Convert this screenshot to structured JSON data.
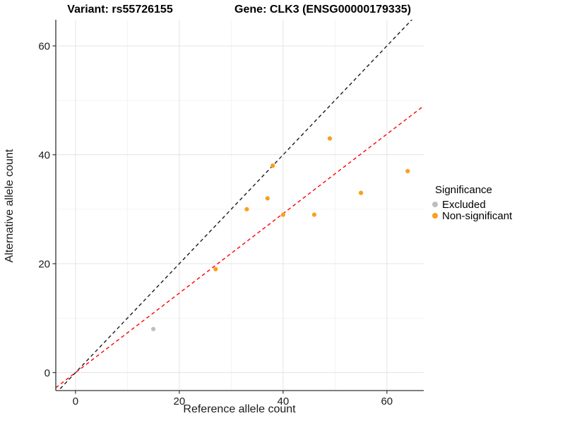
{
  "title": {
    "variant": "Variant: rs55726155",
    "gene": "Gene: CLK3 (ENSG00000179335)"
  },
  "chart_data": {
    "type": "scatter",
    "xlabel": "Reference allele count",
    "ylabel": "Alternative allele count",
    "xlim": [
      -3.8,
      67.1
    ],
    "ylim": [
      -3.3,
      64.8
    ],
    "x_ticks": [
      0,
      20,
      40,
      60
    ],
    "y_ticks": [
      0,
      20,
      40,
      60
    ],
    "x_minor": [
      10,
      30,
      50
    ],
    "y_minor": [
      10,
      30,
      50
    ],
    "grid": true,
    "series": [
      {
        "name": "Excluded",
        "color": "#BEBEBE",
        "points": [
          [
            15,
            8
          ]
        ]
      },
      {
        "name": "Non-significant",
        "color": "#F9A01B",
        "points": [
          [
            27,
            19
          ],
          [
            33,
            30
          ],
          [
            37,
            32
          ],
          [
            38,
            38
          ],
          [
            40,
            29
          ],
          [
            46,
            29
          ],
          [
            49,
            43
          ],
          [
            55,
            33
          ],
          [
            64,
            37
          ]
        ]
      }
    ],
    "lines": [
      {
        "name": "identity-line",
        "slope": 1,
        "intercept": 0,
        "color": "#1A1A1A",
        "dash": "5,4"
      },
      {
        "name": "ratio-line",
        "slope": 0.73,
        "intercept": 0,
        "color": "#FF0000",
        "dash": "5,4"
      }
    ],
    "legend": {
      "title": "Significance",
      "position": "right"
    }
  }
}
